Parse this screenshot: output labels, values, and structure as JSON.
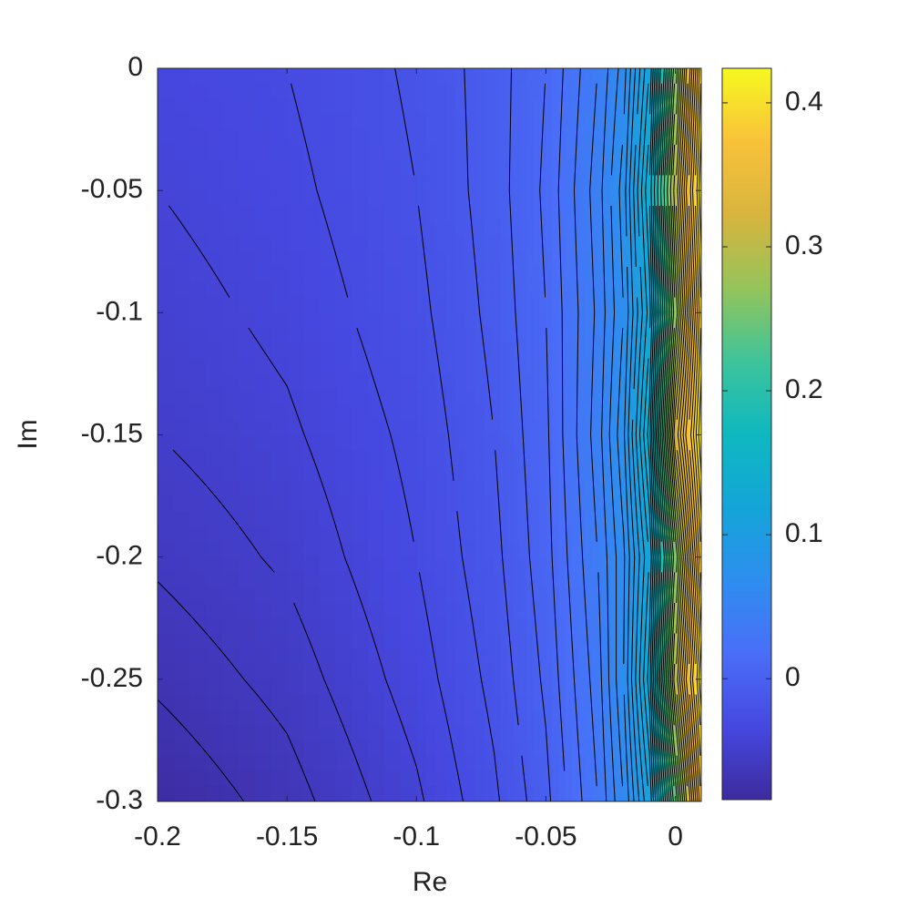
{
  "chart_data": {
    "type": "contourf",
    "x_label": "Re",
    "y_label": "Im",
    "x": [
      -0.2,
      -0.15,
      -0.1,
      -0.07,
      -0.05,
      -0.03,
      -0.02,
      -0.01,
      0,
      0.01
    ],
    "y": [
      0,
      -0.05,
      -0.1,
      -0.15,
      -0.2,
      -0.25,
      -0.3
    ],
    "z": [
      [
        -0.035,
        -0.03,
        -0.018,
        -0.005,
        0.01,
        0.04,
        0.065,
        0.12,
        0.26,
        0.4
      ],
      [
        -0.04,
        -0.033,
        -0.02,
        -0.005,
        0.012,
        0.045,
        0.075,
        0.14,
        0.3,
        0.42
      ],
      [
        -0.045,
        -0.037,
        -0.023,
        -0.007,
        0.01,
        0.042,
        0.07,
        0.125,
        0.27,
        0.4
      ],
      [
        -0.05,
        -0.042,
        -0.027,
        -0.01,
        0.008,
        0.045,
        0.078,
        0.145,
        0.32,
        0.42
      ],
      [
        -0.058,
        -0.048,
        -0.03,
        -0.013,
        0.006,
        0.04,
        0.068,
        0.12,
        0.26,
        0.39
      ],
      [
        -0.068,
        -0.056,
        -0.035,
        -0.017,
        0.002,
        0.035,
        0.07,
        0.135,
        0.3,
        0.42
      ],
      [
        -0.08,
        -0.065,
        -0.042,
        -0.022,
        -0.003,
        0.03,
        0.06,
        0.11,
        0.24,
        0.38
      ]
    ],
    "levels": [
      -0.07,
      -0.06,
      -0.05,
      -0.04,
      -0.03,
      -0.02,
      -0.01,
      0,
      0.01,
      0.02,
      0.03,
      0.04,
      0.05,
      0.06,
      0.07,
      0.08,
      0.09,
      0.1,
      0.11,
      0.12,
      0.13,
      0.14,
      0.15,
      0.16,
      0.17,
      0.18,
      0.19,
      0.2,
      0.21,
      0.22,
      0.23,
      0.24,
      0.25,
      0.26,
      0.27,
      0.28,
      0.29,
      0.3,
      0.31,
      0.32,
      0.33,
      0.34,
      0.35,
      0.36,
      0.37,
      0.38,
      0.39,
      0.4,
      0.41
    ],
    "line_color": "#000000",
    "colormap": [
      "#3d2b9e",
      "#4648e0",
      "#4a6ef8",
      "#2e8eef",
      "#14a5d8",
      "#0fb8c0",
      "#3ec49a",
      "#95c45a",
      "#d8b43e",
      "#f8c23a",
      "#f6f820"
    ],
    "xlim": [
      -0.2,
      0.01
    ],
    "xticks": [
      -0.2,
      -0.15,
      -0.1,
      -0.05,
      0
    ],
    "ylim": [
      -0.3,
      0
    ],
    "yticks": [
      -0.3,
      -0.25,
      -0.2,
      -0.15,
      -0.1,
      -0.05,
      0
    ],
    "clim": [
      -0.084,
      0.424
    ],
    "cticks": [
      0,
      0.1,
      0.2,
      0.3,
      0.4
    ]
  }
}
